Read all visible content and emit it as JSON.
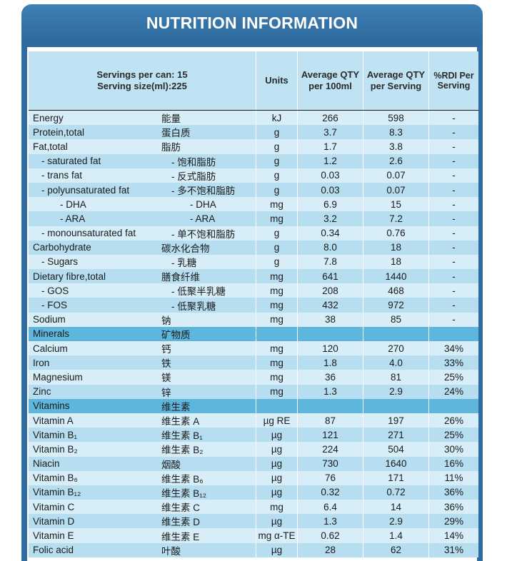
{
  "title": "NUTRITION INFORMATION",
  "header": {
    "servings_line1": "Servings per can: 15",
    "servings_line2": "Serving size(ml):225",
    "units": "Units",
    "avg100_l1": "Average QTY",
    "avg100_l2": "per 100ml",
    "avgserv_l1": "Average QTY",
    "avgserv_l2": "per Serving",
    "rdi_l1": "%RDI Per",
    "rdi_l2": "Serving"
  },
  "rows": [
    {
      "en": "Energy",
      "zh": "能量",
      "unit": "kJ",
      "per100": "266",
      "serving": "598",
      "rdi": "-",
      "level": 0,
      "zhlevel": 0,
      "style": "light"
    },
    {
      "en": "Protein,total",
      "zh": "蛋白质",
      "unit": "g",
      "per100": "3.7",
      "serving": "8.3",
      "rdi": "-",
      "level": 0,
      "zhlevel": 0,
      "style": "mid"
    },
    {
      "en": "Fat,total",
      "zh": "脂肪",
      "unit": "g",
      "per100": "1.7",
      "serving": "3.8",
      "rdi": "-",
      "level": 0,
      "zhlevel": 0,
      "style": "light"
    },
    {
      "en": "- saturated fat",
      "zh": "- 饱和脂肪",
      "unit": "g",
      "per100": "1.2",
      "serving": "2.6",
      "rdi": "-",
      "level": 1,
      "zhlevel": 1,
      "style": "mid"
    },
    {
      "en": "- trans fat",
      "zh": "- 反式脂肪",
      "unit": "g",
      "per100": "0.03",
      "serving": "0.07",
      "rdi": "-",
      "level": 1,
      "zhlevel": 1,
      "style": "light"
    },
    {
      "en": "- polyunsaturated fat",
      "zh": "- 多不饱和脂肪",
      "unit": "g",
      "per100": "0.03",
      "serving": "0.07",
      "rdi": "-",
      "level": 1,
      "zhlevel": 1,
      "style": "mid"
    },
    {
      "en": "- DHA",
      "zh": "- DHA",
      "unit": "mg",
      "per100": "6.9",
      "serving": "15",
      "rdi": "-",
      "level": 2,
      "zhlevel": 2,
      "style": "light"
    },
    {
      "en": "- ARA",
      "zh": "- ARA",
      "unit": "mg",
      "per100": "3.2",
      "serving": "7.2",
      "rdi": "-",
      "level": 2,
      "zhlevel": 2,
      "style": "mid"
    },
    {
      "en": "- monounsaturated fat",
      "zh": "- 单不饱和脂肪",
      "unit": "g",
      "per100": "0.34",
      "serving": "0.76",
      "rdi": "-",
      "level": 1,
      "zhlevel": 1,
      "style": "light"
    },
    {
      "en": "Carbohydrate",
      "zh": "碳水化合物",
      "unit": "g",
      "per100": "8.0",
      "serving": "18",
      "rdi": "-",
      "level": 0,
      "zhlevel": 0,
      "style": "mid"
    },
    {
      "en": "- Sugars",
      "zh": "- 乳糖",
      "unit": "g",
      "per100": "7.8",
      "serving": "18",
      "rdi": "-",
      "level": 1,
      "zhlevel": 1,
      "style": "light"
    },
    {
      "en": "Dietary fibre,total",
      "zh": "膳食纤维",
      "unit": "mg",
      "per100": "641",
      "serving": "1440",
      "rdi": "-",
      "level": 0,
      "zhlevel": 0,
      "style": "mid"
    },
    {
      "en": "- GOS",
      "zh": "- 低聚半乳糖",
      "unit": "mg",
      "per100": "208",
      "serving": "468",
      "rdi": "-",
      "level": 1,
      "zhlevel": 1,
      "style": "light"
    },
    {
      "en": "- FOS",
      "zh": "- 低聚乳糖",
      "unit": "mg",
      "per100": "432",
      "serving": "972",
      "rdi": "-",
      "level": 1,
      "zhlevel": 1,
      "style": "mid"
    },
    {
      "en": "Sodium",
      "zh": "钠",
      "unit": "mg",
      "per100": "38",
      "serving": "85",
      "rdi": "-",
      "level": 0,
      "zhlevel": 0,
      "style": "light"
    },
    {
      "en": "Minerals",
      "zh": "矿物质",
      "unit": "",
      "per100": "",
      "serving": "",
      "rdi": "",
      "level": 0,
      "zhlevel": 0,
      "style": "section"
    },
    {
      "en": "Calcium",
      "zh": "钙",
      "unit": "mg",
      "per100": "120",
      "serving": "270",
      "rdi": "34%",
      "level": 0,
      "zhlevel": 0,
      "style": "light"
    },
    {
      "en": "Iron",
      "zh": "铁",
      "unit": "mg",
      "per100": "1.8",
      "serving": "4.0",
      "rdi": "33%",
      "level": 0,
      "zhlevel": 0,
      "style": "mid"
    },
    {
      "en": "Magnesium",
      "zh": "镁",
      "unit": "mg",
      "per100": "36",
      "serving": "81",
      "rdi": "25%",
      "level": 0,
      "zhlevel": 0,
      "style": "light"
    },
    {
      "en": "Zinc",
      "zh": "锌",
      "unit": "mg",
      "per100": "1.3",
      "serving": "2.9",
      "rdi": "24%",
      "level": 0,
      "zhlevel": 0,
      "style": "mid"
    },
    {
      "en": "Vitamins",
      "zh": "维生素",
      "unit": "",
      "per100": "",
      "serving": "",
      "rdi": "",
      "level": 0,
      "zhlevel": 0,
      "style": "section"
    },
    {
      "en": "Vitamin A",
      "zh": "维生素 A",
      "unit": "µg RE",
      "per100": "87",
      "serving": "197",
      "rdi": "26%",
      "level": 0,
      "zhlevel": 0,
      "style": "light"
    },
    {
      "en": "Vitamin B₁",
      "zh": "维生素 B₁",
      "unit": "µg",
      "per100": "121",
      "serving": "271",
      "rdi": "25%",
      "level": 0,
      "zhlevel": 0,
      "style": "mid"
    },
    {
      "en": "Vitamin B₂",
      "zh": "维生素 B₂",
      "unit": "µg",
      "per100": "224",
      "serving": "504",
      "rdi": "30%",
      "level": 0,
      "zhlevel": 0,
      "style": "light"
    },
    {
      "en": "Niacin",
      "zh": "烟酸",
      "unit": "µg",
      "per100": "730",
      "serving": "1640",
      "rdi": "16%",
      "level": 0,
      "zhlevel": 0,
      "style": "mid"
    },
    {
      "en": "Vitamin B₆",
      "zh": "维生素 B₆",
      "unit": "µg",
      "per100": "76",
      "serving": "171",
      "rdi": "11%",
      "level": 0,
      "zhlevel": 0,
      "style": "light"
    },
    {
      "en": "Vitamin B₁₂",
      "zh": "维生素 B₁₂",
      "unit": "µg",
      "per100": "0.32",
      "serving": "0.72",
      "rdi": "36%",
      "level": 0,
      "zhlevel": 0,
      "style": "mid"
    },
    {
      "en": "Vitamin C",
      "zh": "维生素 C",
      "unit": "mg",
      "per100": "6.4",
      "serving": "14",
      "rdi": "36%",
      "level": 0,
      "zhlevel": 0,
      "style": "light"
    },
    {
      "en": "Vitamin D",
      "zh": "维生素 D",
      "unit": "µg",
      "per100": "1.3",
      "serving": "2.9",
      "rdi": "29%",
      "level": 0,
      "zhlevel": 0,
      "style": "mid"
    },
    {
      "en": "Vitamin E",
      "zh": "维生素 E",
      "unit": "mg α-TE",
      "per100": "0.62",
      "serving": "1.4",
      "rdi": "14%",
      "level": 0,
      "zhlevel": 0,
      "style": "light"
    },
    {
      "en": "Folic acid",
      "zh": "叶酸",
      "unit": "µg",
      "per100": "28",
      "serving": "62",
      "rdi": "31%",
      "level": 0,
      "zhlevel": 0,
      "style": "mid"
    }
  ]
}
